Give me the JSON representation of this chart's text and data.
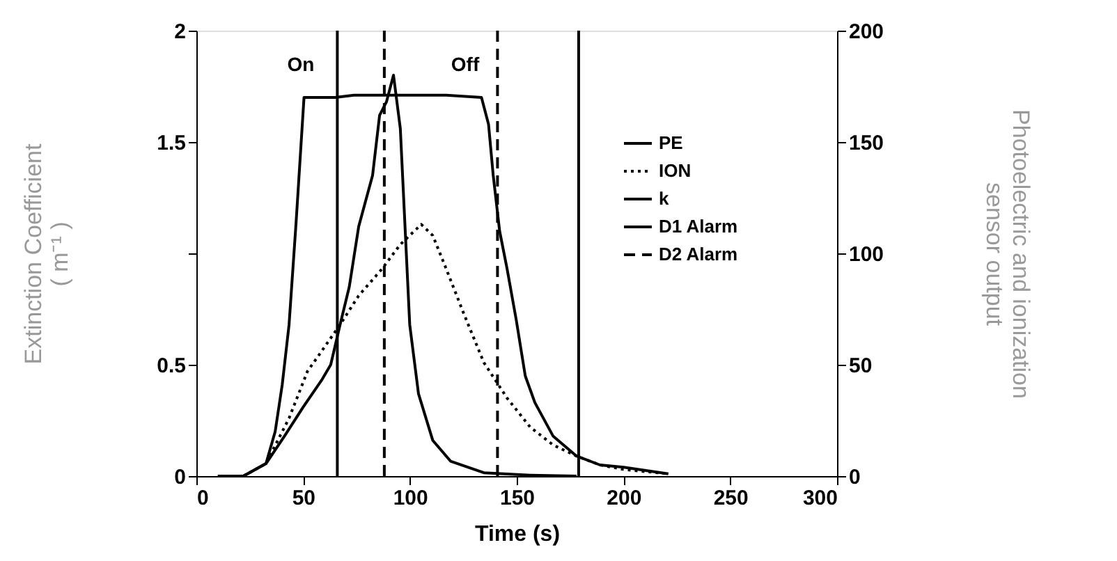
{
  "chart_data": {
    "type": "line",
    "xlabel": "Time (s)",
    "ylabel": "Extinction Coefficient\n( m⁻¹ )",
    "y2label": "Photoelectric and ionization\nsensor output",
    "xlim": [
      0,
      300
    ],
    "xticks": [
      0,
      50,
      100,
      150,
      200,
      250,
      300
    ],
    "ylim": [
      0,
      2
    ],
    "yticks": [
      0,
      0.5,
      {
        "value": 1,
        "label": null
      },
      1.5,
      2
    ],
    "y2lim": [
      0,
      200
    ],
    "y2ticks": [
      0,
      50,
      100,
      150,
      200
    ],
    "grid": false,
    "legend": "top right",
    "marker": "none",
    "annotations": [
      "On",
      "Off"
    ],
    "series": [
      {
        "name": "PE",
        "color": "#000000",
        "axis": "y2",
        "line_style": "solid",
        "x": [
          10,
          22,
          32.6,
          36.9,
          40.2,
          43.4,
          46.7,
          50.4,
          65,
          73.8,
          91,
          117,
          133.5,
          136.8,
          139,
          142,
          145.5,
          149.8,
          154,
          158.5,
          167,
          178,
          189,
          200,
          221
        ],
        "values": [
          0,
          0,
          5.6,
          20,
          41,
          68,
          114,
          170,
          170,
          171,
          171,
          171,
          170,
          158,
          135,
          110,
          93,
          70,
          45,
          33,
          18,
          9,
          5,
          4,
          1
        ]
      },
      {
        "name": "ION",
        "color": "#000000",
        "axis": "y2",
        "line_style": "dotted",
        "x": [
          22,
          32.6,
          43.4,
          52,
          58.6,
          67.3,
          76,
          86.9,
          95.5,
          105.3,
          110.7,
          117,
          125.6,
          134.6,
          145.5,
          156.3,
          167,
          178,
          189,
          200,
          221
        ],
        "values": [
          0,
          5.6,
          26,
          47,
          56,
          68,
          81,
          93,
          104,
          113,
          108,
          93,
          72,
          51,
          35,
          22,
          14,
          9,
          5,
          3,
          1
        ]
      },
      {
        "name": "k",
        "color": "#000000",
        "line_style": "solid",
        "x": [
          22,
          32.6,
          41.3,
          50,
          58.6,
          62.9,
          67.3,
          71.6,
          76,
          82.5,
          85.8,
          89,
          92.3,
          95.5,
          99.9,
          104,
          110.7,
          119,
          134.6,
          156.3,
          178
        ],
        "values": [
          0,
          0.056,
          0.18,
          0.31,
          0.43,
          0.5,
          0.68,
          0.85,
          1.12,
          1.35,
          1.62,
          1.68,
          1.8,
          1.56,
          0.68,
          0.37,
          0.16,
          0.067,
          0.015,
          0.004,
          0
        ]
      },
      {
        "name": "D1 Alarm",
        "color": "#000000",
        "line_style": "solid",
        "x": [
          66,
          66,
          null,
          179,
          179
        ],
        "values": [
          0,
          2,
          null,
          0,
          2
        ]
      },
      {
        "name": "D2 Alarm",
        "color": "#000000",
        "line_style": "dashed",
        "x": [
          88,
          88,
          null,
          141,
          141
        ],
        "values": [
          0,
          2,
          null,
          0,
          2
        ]
      }
    ]
  }
}
